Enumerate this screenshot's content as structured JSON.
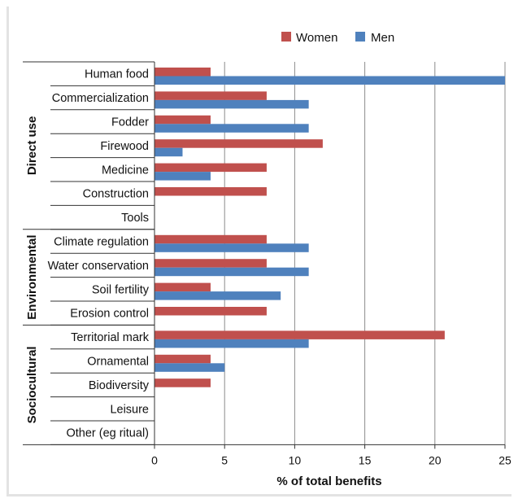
{
  "chart_data": {
    "type": "bar",
    "orientation": "horizontal",
    "title": "",
    "xlabel": "% of total benefits",
    "ylabel": "",
    "xlim": [
      0,
      25
    ],
    "xticks": [
      0,
      5,
      10,
      15,
      20,
      25
    ],
    "grid": "vertical",
    "legend_position": "top",
    "categories": [
      "Human food",
      "Commercialization",
      "Fodder",
      "Firewood",
      "Medicine",
      "Construction",
      "Tools",
      "Climate regulation",
      "Water conservation",
      "Soil fertility",
      "Erosion control",
      "Territorial mark",
      "Ornamental",
      "Biodiversity",
      "Leisure",
      "Other (eg ritual)"
    ],
    "groups": [
      {
        "label": "Direct use",
        "categories": [
          "Human food",
          "Commercialization",
          "Fodder",
          "Firewood",
          "Medicine",
          "Construction",
          "Tools"
        ]
      },
      {
        "label": "Environmental",
        "categories": [
          "Climate regulation",
          "Water conservation",
          "Soil fertility",
          "Erosion control"
        ]
      },
      {
        "label": "Sociocultural",
        "categories": [
          "Territorial mark",
          "Ornamental",
          "Biodiversity",
          "Leisure",
          "Other (eg ritual)"
        ]
      }
    ],
    "series": [
      {
        "name": "Women",
        "color": "#c0504d",
        "values": [
          4,
          8,
          4,
          12,
          8,
          8,
          0,
          8,
          8,
          4,
          8,
          20.7,
          4,
          4,
          0,
          0
        ]
      },
      {
        "name": "Men",
        "color": "#4f81bd",
        "values": [
          25,
          11,
          11,
          2,
          4,
          0,
          0,
          11,
          11,
          9,
          0,
          11,
          5,
          0,
          0,
          0
        ]
      }
    ]
  }
}
